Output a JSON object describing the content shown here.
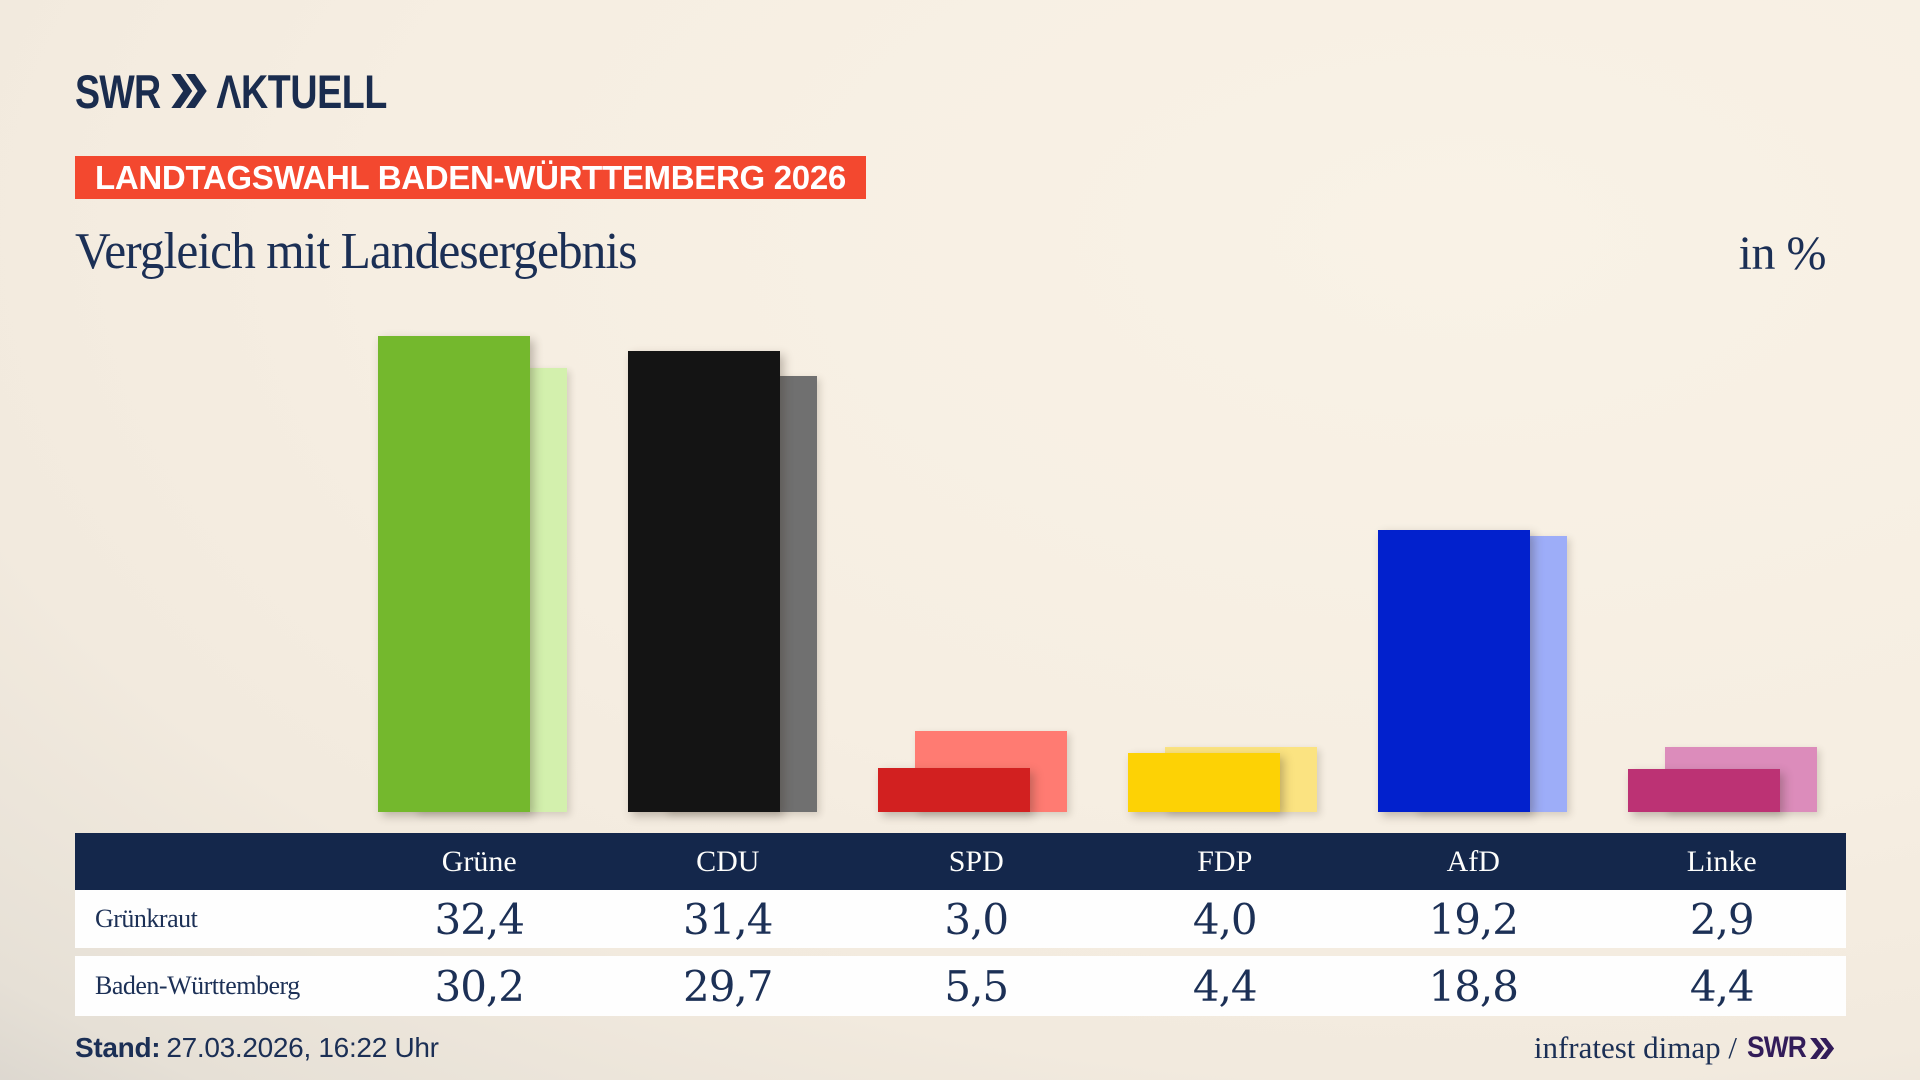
{
  "header": {
    "brand": {
      "swr": "SWR",
      "aktuell": "ΛKTUELL"
    },
    "badge": "LANDTAGSWAHL BADEN-WÜRTTEMBERG 2026",
    "title": "Vergleich mit Landesergebnis",
    "unit_label": "in %"
  },
  "chart_data": {
    "type": "bar",
    "title": "Vergleich mit Landesergebnis",
    "unit": "in %",
    "categories": [
      "Grüne",
      "CDU",
      "SPD",
      "FDP",
      "AfD",
      "Linke"
    ],
    "series": [
      {
        "name": "Grünkraut",
        "values": [
          32.4,
          31.4,
          3.0,
          4.0,
          19.2,
          2.9
        ]
      },
      {
        "name": "Baden-Württemberg",
        "values": [
          30.2,
          29.7,
          5.5,
          4.4,
          18.8,
          4.4
        ]
      }
    ],
    "ylim": [
      0,
      34
    ],
    "grid": false,
    "legend": "table-below",
    "colors": {
      "main": [
        "#74b82d",
        "#141414",
        "#d22020",
        "#fdd205",
        "#0221cd",
        "#bc3274"
      ],
      "light": [
        "#d3f0ad",
        "#707070",
        "#ff7b72",
        "#fbe381",
        "#9dadf8",
        "#dc8cbb"
      ]
    }
  },
  "table": {
    "columns": [
      "Grüne",
      "CDU",
      "SPD",
      "FDP",
      "AfD",
      "Linke"
    ],
    "rows": [
      {
        "label": "Grünkraut",
        "values": [
          "32,4",
          "31,4",
          "3,0",
          "4,0",
          "19,2",
          "2,9"
        ]
      },
      {
        "label": "Baden-Württemberg",
        "values": [
          "30,2",
          "29,7",
          "5,5",
          "4,4",
          "18,8",
          "4,4"
        ]
      }
    ]
  },
  "footer": {
    "stand_label": "Stand:",
    "stand_value": "27.03.2026, 16:22 Uhr",
    "source": "infratest dimap /",
    "source_brand": "SWR"
  },
  "colors": {
    "accent_red": "#f3482f",
    "navy": "#14274b",
    "text_navy": "#1b2f55",
    "footer_brand_purple": "#321c59",
    "background_light": "#f6eee2",
    "background_dark_corner": "#c4c1bc"
  }
}
